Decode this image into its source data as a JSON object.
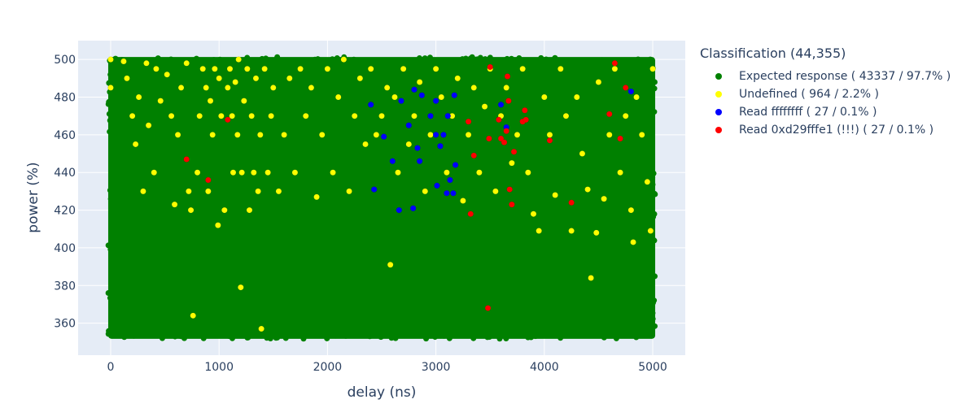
{
  "legend": {
    "title": "Classification (44,355)"
  },
  "chart_data": {
    "type": "scatter",
    "xlabel": "delay (ns)",
    "ylabel": "power (%)",
    "xlim": [
      -300,
      5300
    ],
    "ylim": [
      343,
      510
    ],
    "x_ticks": [
      0,
      1000,
      2000,
      3000,
      4000,
      5000
    ],
    "y_ticks": [
      360,
      380,
      400,
      420,
      440,
      460,
      480,
      500
    ],
    "grid": true,
    "legend_position": "right",
    "series": [
      {
        "name": "Expected response ( 43337 / 97.7% )",
        "color": "#008000",
        "description": "dense coverage of delay 0-5000 ns, power 353-500 %",
        "x_range": [
          0,
          5000
        ],
        "y_range": [
          353,
          500
        ]
      },
      {
        "name": "Undefined ( 964 / 2.2% )",
        "color": "#ffff00",
        "points": [
          [
            0,
            500
          ],
          [
            0,
            485
          ],
          [
            120,
            499
          ],
          [
            150,
            490
          ],
          [
            200,
            470
          ],
          [
            230,
            455
          ],
          [
            260,
            480
          ],
          [
            300,
            430
          ],
          [
            330,
            498
          ],
          [
            350,
            465
          ],
          [
            400,
            440
          ],
          [
            420,
            495
          ],
          [
            460,
            478
          ],
          [
            520,
            492
          ],
          [
            560,
            470
          ],
          [
            590,
            423
          ],
          [
            620,
            460
          ],
          [
            650,
            485
          ],
          [
            700,
            498
          ],
          [
            720,
            430
          ],
          [
            740,
            420
          ],
          [
            760,
            364
          ],
          [
            800,
            440
          ],
          [
            820,
            470
          ],
          [
            850,
            495
          ],
          [
            880,
            485
          ],
          [
            900,
            430
          ],
          [
            920,
            478
          ],
          [
            940,
            460
          ],
          [
            960,
            495
          ],
          [
            990,
            412
          ],
          [
            1000,
            490
          ],
          [
            1020,
            470
          ],
          [
            1050,
            420
          ],
          [
            1080,
            485
          ],
          [
            1100,
            495
          ],
          [
            1120,
            470
          ],
          [
            1130,
            440
          ],
          [
            1150,
            488
          ],
          [
            1170,
            460
          ],
          [
            1180,
            500
          ],
          [
            1200,
            379
          ],
          [
            1210,
            440
          ],
          [
            1230,
            478
          ],
          [
            1260,
            495
          ],
          [
            1280,
            420
          ],
          [
            1300,
            470
          ],
          [
            1320,
            440
          ],
          [
            1340,
            490
          ],
          [
            1360,
            430
          ],
          [
            1380,
            460
          ],
          [
            1390,
            357
          ],
          [
            1420,
            495
          ],
          [
            1450,
            440
          ],
          [
            1480,
            470
          ],
          [
            1500,
            485
          ],
          [
            1550,
            430
          ],
          [
            1600,
            460
          ],
          [
            1650,
            490
          ],
          [
            1700,
            440
          ],
          [
            1750,
            495
          ],
          [
            1800,
            470
          ],
          [
            1850,
            485
          ],
          [
            1900,
            427
          ],
          [
            1950,
            460
          ],
          [
            2000,
            495
          ],
          [
            2050,
            440
          ],
          [
            2100,
            480
          ],
          [
            2150,
            500
          ],
          [
            2200,
            430
          ],
          [
            2250,
            470
          ],
          [
            2300,
            490
          ],
          [
            2350,
            455
          ],
          [
            2400,
            495
          ],
          [
            2450,
            460
          ],
          [
            2500,
            470
          ],
          [
            2550,
            485
          ],
          [
            2580,
            391
          ],
          [
            2620,
            480
          ],
          [
            2650,
            440
          ],
          [
            2700,
            495
          ],
          [
            2750,
            455
          ],
          [
            2800,
            470
          ],
          [
            2850,
            488
          ],
          [
            2900,
            430
          ],
          [
            2950,
            460
          ],
          [
            3000,
            495
          ],
          [
            3050,
            480
          ],
          [
            3100,
            440
          ],
          [
            3150,
            470
          ],
          [
            3200,
            490
          ],
          [
            3250,
            425
          ],
          [
            3300,
            460
          ],
          [
            3350,
            485
          ],
          [
            3400,
            440
          ],
          [
            3450,
            475
          ],
          [
            3500,
            495
          ],
          [
            3550,
            430
          ],
          [
            3600,
            470
          ],
          [
            3650,
            485
          ],
          [
            3700,
            445
          ],
          [
            3750,
            460
          ],
          [
            3800,
            495
          ],
          [
            3850,
            440
          ],
          [
            3900,
            418
          ],
          [
            3950,
            409
          ],
          [
            4000,
            480
          ],
          [
            4050,
            460
          ],
          [
            4100,
            428
          ],
          [
            4150,
            495
          ],
          [
            4200,
            470
          ],
          [
            4250,
            409
          ],
          [
            4300,
            480
          ],
          [
            4350,
            450
          ],
          [
            4400,
            431
          ],
          [
            4430,
            384
          ],
          [
            4480,
            408
          ],
          [
            4500,
            488
          ],
          [
            4550,
            426
          ],
          [
            4600,
            460
          ],
          [
            4650,
            495
          ],
          [
            4700,
            440
          ],
          [
            4750,
            470
          ],
          [
            4800,
            420
          ],
          [
            4820,
            403
          ],
          [
            4850,
            480
          ],
          [
            4900,
            460
          ],
          [
            4950,
            435
          ],
          [
            4980,
            409
          ],
          [
            5000,
            495
          ]
        ]
      },
      {
        "name": "Read ffffffff ( 27 / 0.1% )",
        "color": "#0000ff",
        "points": [
          [
            2400,
            476
          ],
          [
            2430,
            431
          ],
          [
            2520,
            459
          ],
          [
            2600,
            446
          ],
          [
            2660,
            420
          ],
          [
            2680,
            478
          ],
          [
            2750,
            465
          ],
          [
            2790,
            421
          ],
          [
            2800,
            484
          ],
          [
            2830,
            453
          ],
          [
            2850,
            446
          ],
          [
            2870,
            481
          ],
          [
            2950,
            470
          ],
          [
            3000,
            460
          ],
          [
            3000,
            478
          ],
          [
            3010,
            433
          ],
          [
            3040,
            454
          ],
          [
            3070,
            460
          ],
          [
            3100,
            429
          ],
          [
            3110,
            470
          ],
          [
            3130,
            436
          ],
          [
            3160,
            429
          ],
          [
            3170,
            481
          ],
          [
            3180,
            444
          ],
          [
            3600,
            476
          ],
          [
            3650,
            464
          ],
          [
            4800,
            483
          ]
        ]
      },
      {
        "name": "Read 0xd29fffe1 (!!!) ( 27 / 0.1% )",
        "color": "#ff0000",
        "points": [
          [
            700,
            447
          ],
          [
            900,
            436
          ],
          [
            1080,
            468
          ],
          [
            3300,
            467
          ],
          [
            3320,
            418
          ],
          [
            3350,
            449
          ],
          [
            3480,
            368
          ],
          [
            3490,
            458
          ],
          [
            3500,
            496
          ],
          [
            3580,
            468
          ],
          [
            3600,
            458
          ],
          [
            3630,
            456
          ],
          [
            3650,
            462
          ],
          [
            3660,
            491
          ],
          [
            3670,
            478
          ],
          [
            3680,
            431
          ],
          [
            3700,
            423
          ],
          [
            3720,
            451
          ],
          [
            3800,
            467
          ],
          [
            3820,
            473
          ],
          [
            3830,
            468
          ],
          [
            4050,
            457
          ],
          [
            4250,
            424
          ],
          [
            4600,
            471
          ],
          [
            4650,
            498
          ],
          [
            4700,
            458
          ],
          [
            4750,
            485
          ]
        ]
      }
    ]
  }
}
